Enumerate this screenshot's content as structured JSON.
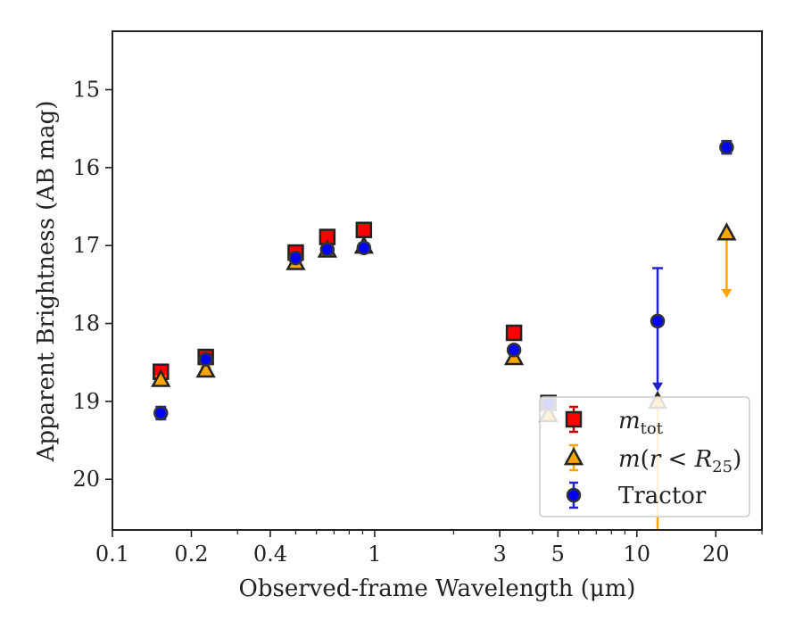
{
  "chart_data": {
    "type": "scatter",
    "title": "",
    "xlabel": "Observed-frame Wavelength (μm)",
    "ylabel": "Apparent Brightness (AB mag)",
    "xscale": "log",
    "xlim": [
      0.1,
      30
    ],
    "ylim": [
      20.65,
      14.25
    ],
    "y_inverted": true,
    "grid": false,
    "legend_position": "lower-right",
    "x_ticks": [
      {
        "value": 0.1,
        "label": "0.1"
      },
      {
        "value": 0.2,
        "label": "0.2"
      },
      {
        "value": 0.4,
        "label": "0.4"
      },
      {
        "value": 1,
        "label": "1"
      },
      {
        "value": 3,
        "label": "3"
      },
      {
        "value": 5,
        "label": "5"
      },
      {
        "value": 10,
        "label": "10"
      },
      {
        "value": 20,
        "label": "20"
      }
    ],
    "y_ticks": [
      {
        "value": 15,
        "label": "15"
      },
      {
        "value": 16,
        "label": "16"
      },
      {
        "value": 17,
        "label": "17"
      },
      {
        "value": 18,
        "label": "18"
      },
      {
        "value": 19,
        "label": "19"
      },
      {
        "value": 20,
        "label": "20"
      }
    ],
    "series": [
      {
        "name": "m_tot",
        "marker": "square",
        "face_color": "#ff0000",
        "edge_color": "#222222",
        "error_color": "#cc0000",
        "points": [
          {
            "x": 0.153,
            "y": 18.62,
            "err": 0.06
          },
          {
            "x": 0.227,
            "y": 18.43,
            "err": 0.05
          },
          {
            "x": 0.5,
            "y": 17.09,
            "err": 0.05
          },
          {
            "x": 0.66,
            "y": 16.89,
            "err": 0.05
          },
          {
            "x": 0.91,
            "y": 16.8,
            "err": 0.05
          },
          {
            "x": 3.4,
            "y": 18.12,
            "err": 0.05
          },
          {
            "x": 4.6,
            "y": 19.02,
            "err": 0.05
          }
        ]
      },
      {
        "name": "m(r < R25)",
        "marker": "triangle",
        "face_color": "#ffa500",
        "edge_color": "#222222",
        "error_color": "#ffa500",
        "points": [
          {
            "x": 0.153,
            "y": 18.72,
            "err": 0.04
          },
          {
            "x": 0.227,
            "y": 18.6,
            "err": 0.04
          },
          {
            "x": 0.5,
            "y": 17.22,
            "err": 0.04
          },
          {
            "x": 0.66,
            "y": 17.06,
            "err": 0.04
          },
          {
            "x": 0.91,
            "y": 17.01,
            "err": 0.04
          },
          {
            "x": 3.4,
            "y": 18.44,
            "err": 0.04
          },
          {
            "x": 4.6,
            "y": 19.17,
            "err": 0.04
          },
          {
            "x": 12.0,
            "y": 19.0,
            "err": 0.04,
            "err_high": 20.65,
            "upper_limit": false
          },
          {
            "x": 22.0,
            "y": 16.84,
            "upper_limit": true,
            "arrow_to": 17.65
          }
        ]
      },
      {
        "name": "Tractor",
        "marker": "circle",
        "face_color": "#0000ff",
        "edge_color": "#333333",
        "error_color": "#2222cc",
        "points": [
          {
            "x": 0.153,
            "y": 19.15,
            "err": 0.08
          },
          {
            "x": 0.227,
            "y": 18.46,
            "err": 0.05
          },
          {
            "x": 0.5,
            "y": 17.16,
            "err": 0.05
          },
          {
            "x": 0.66,
            "y": 17.05,
            "err": 0.05
          },
          {
            "x": 0.91,
            "y": 17.03,
            "err": 0.05
          },
          {
            "x": 3.4,
            "y": 18.34,
            "err": 0.05
          },
          {
            "x": 4.6,
            "y": 19.03,
            "err": 0.05
          },
          {
            "x": 12.0,
            "y": 17.97,
            "err_low": 17.29,
            "upper_limit": true,
            "arrow_to": 18.85
          },
          {
            "x": 22.0,
            "y": 15.74,
            "err": 0.08
          }
        ]
      }
    ]
  }
}
